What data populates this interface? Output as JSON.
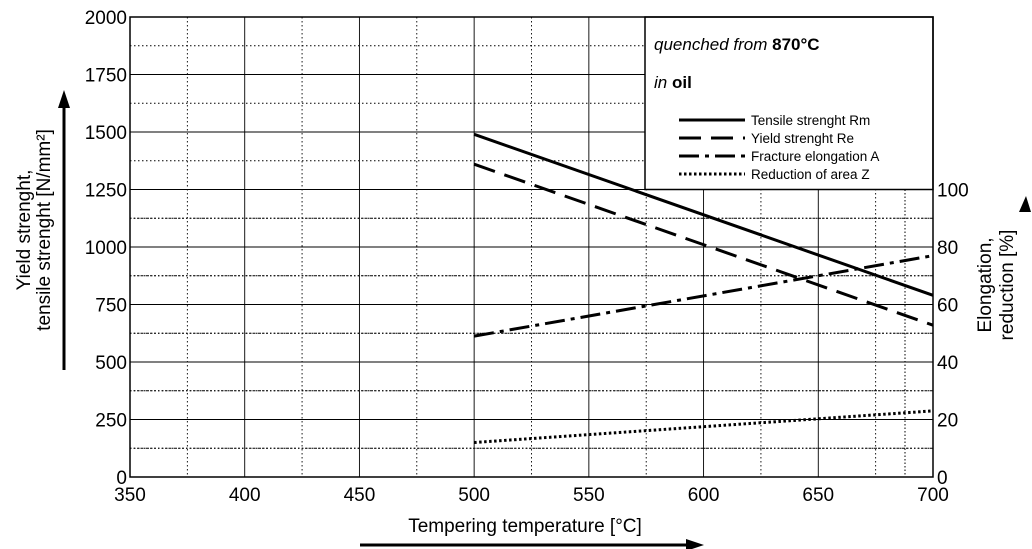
{
  "chart_data": {
    "type": "line",
    "xlabel": "Tempering temperature [°C]",
    "ylabel_left": [
      "Yield strenght,",
      "tensile strenght [N/mm²]"
    ],
    "ylabel_right": [
      "Elongation,",
      "reduction [%]"
    ],
    "xlim": [
      350,
      700
    ],
    "ylim_left": [
      0,
      2000
    ],
    "ylim_right": [
      0,
      100
    ],
    "x_ticks": [
      "350",
      "400",
      "450",
      "500",
      "550",
      "600",
      "650",
      "700"
    ],
    "y_ticks_left": [
      "0",
      "250",
      "500",
      "750",
      "1000",
      "1250",
      "1500",
      "1750",
      "2000"
    ],
    "y_ticks_right": [
      "0",
      "20",
      "40",
      "60",
      "80",
      "100"
    ],
    "grid": true,
    "legend": {
      "placement": "top-right",
      "title_line1": {
        "prefix": "quenched from ",
        "bold": "870°C"
      },
      "title_line2": {
        "prefix": "in ",
        "bold": "oil"
      },
      "entries": [
        "Tensile strenght Rm",
        "Yield strenght Re",
        "Fracture elongation A",
        "Reduction of area Z"
      ]
    },
    "series": [
      {
        "name": "Tensile strenght Rm",
        "axis": "left",
        "style": "solid",
        "x": [
          500,
          700
        ],
        "y": [
          1490,
          790
        ]
      },
      {
        "name": "Yield strenght Re",
        "axis": "left",
        "style": "dashed",
        "x": [
          500,
          700
        ],
        "y": [
          1360,
          660
        ]
      },
      {
        "name": "Fracture elongation A",
        "axis": "right",
        "style": "dashdot",
        "x": [
          500,
          700
        ],
        "y": [
          49,
          77
        ]
      },
      {
        "name": "Reduction of area Z",
        "axis": "right",
        "style": "dotted",
        "x": [
          500,
          700
        ],
        "y": [
          12,
          23
        ]
      }
    ]
  }
}
